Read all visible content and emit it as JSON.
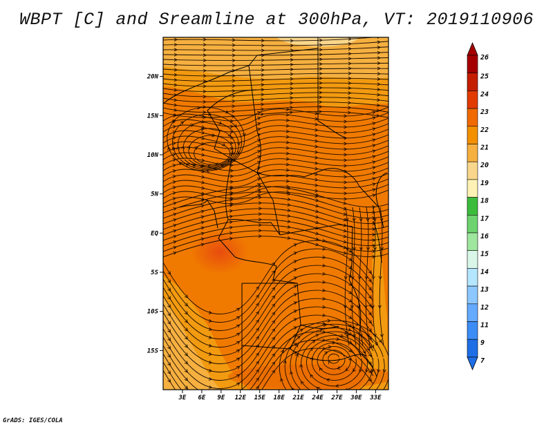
{
  "title": "WBPT [C] and Sreamline at 300hPa, VT: 2019110906",
  "footer": "GrADS: IGES/COLA",
  "map": {
    "lon_range": [
      0,
      35
    ],
    "lat_range": [
      -20,
      25
    ],
    "lat_labels": [
      "20N",
      "15N",
      "10N",
      "5N",
      "EQ",
      "5S",
      "10S",
      "15S"
    ],
    "lat_values": [
      20,
      15,
      10,
      5,
      0,
      -5,
      -10,
      -15
    ],
    "lon_labels": [
      "3E",
      "6E",
      "9E",
      "12E",
      "15E",
      "18E",
      "21E",
      "24E",
      "27E",
      "30E",
      "33E"
    ],
    "lon_values": [
      3,
      6,
      9,
      12,
      15,
      18,
      21,
      24,
      27,
      30,
      33
    ],
    "background_color": "#f08a00"
  },
  "colorbar": {
    "labels": [
      "26",
      "25",
      "24",
      "23",
      "22",
      "21",
      "20",
      "19",
      "18",
      "17",
      "16",
      "15",
      "14",
      "13",
      "12",
      "11",
      "9",
      "7"
    ],
    "colors": [
      "#a50000",
      "#c41d00",
      "#e23b00",
      "#f06a00",
      "#f29000",
      "#f5b040",
      "#f8d68b",
      "#fdf2b3",
      "#3cbc3c",
      "#6ed36e",
      "#9fe69f",
      "#daf6e8",
      "#b4e6ff",
      "#8cc8ff",
      "#64aaff",
      "#3c8cf5",
      "#1e6ee6"
    ],
    "top_arrow_color": "#a50000",
    "bottom_arrow_color": "#1e6ee6"
  }
}
